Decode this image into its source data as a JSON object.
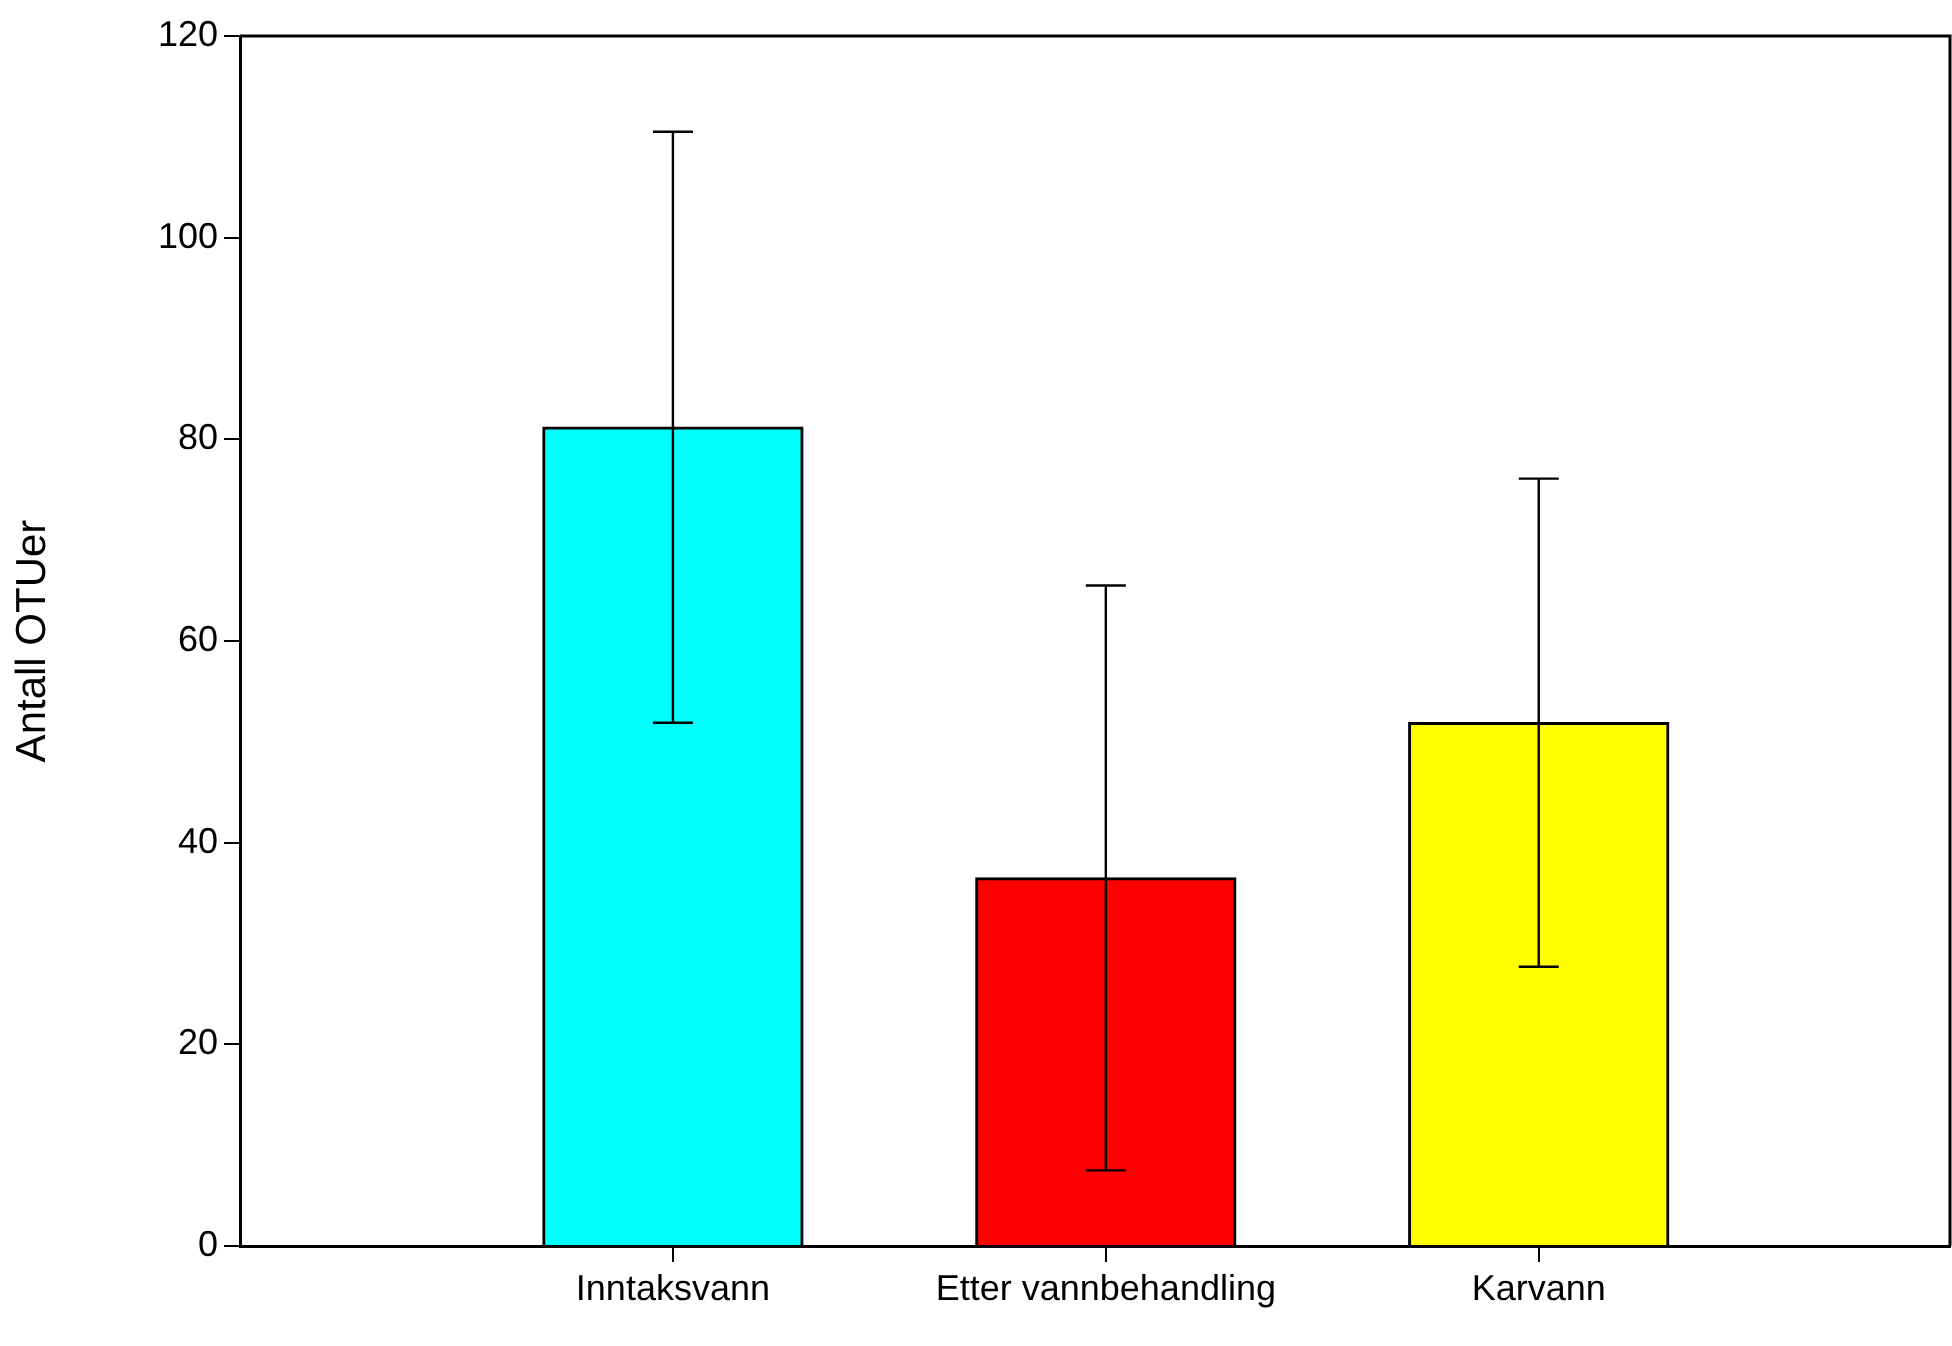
{
  "chart_data": {
    "type": "bar",
    "ylabel": "Antall OTUer",
    "categories": [
      "Inntaksvann",
      "Etter vannbehandling",
      "Karvann"
    ],
    "values": [
      81.2,
      36.5,
      51.9
    ],
    "colors": [
      "#00ffff",
      "#ff0000",
      "#ffff00"
    ],
    "errors": [
      29.3,
      29,
      24.2
    ],
    "ylim": [
      0,
      120
    ],
    "yticks": [
      0,
      20,
      40,
      60,
      80,
      100,
      120
    ],
    "grid": false,
    "legend": false
  }
}
